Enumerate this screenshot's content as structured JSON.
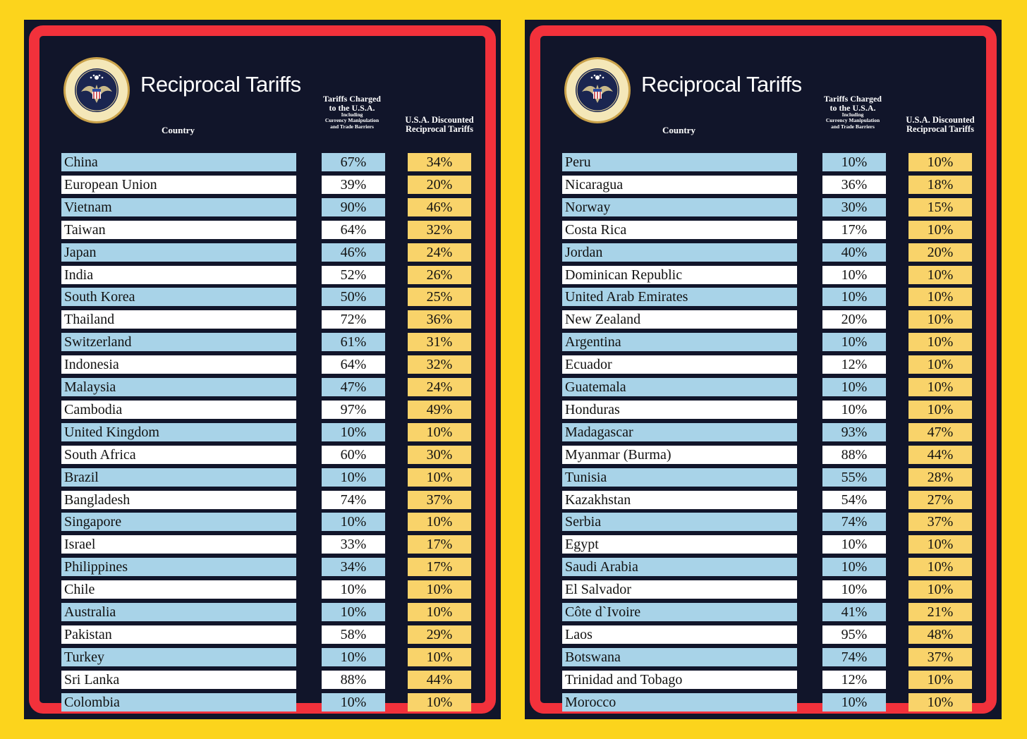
{
  "colors": {
    "background": "#fcd41c",
    "frame": "#f2313b",
    "panel": "#11152a",
    "row_blue": "#a8d3e8",
    "row_white": "#ffffff",
    "discount_cell": "#f9d36a"
  },
  "panels": [
    {
      "title": "Reciprocal Tariffs",
      "seal_icon": "presidential-seal-icon",
      "headers": {
        "country": "Country",
        "charged_line1": "Tariffs Charged",
        "charged_line2": "to the U.S.A.",
        "charged_sub1": "Including",
        "charged_sub2": "Currency Manipulation",
        "charged_sub3": "and Trade Barriers",
        "discount_line1": "U.S.A. Discounted",
        "discount_line2": "Reciprocal Tariffs"
      },
      "rows": [
        {
          "country": "China",
          "charged": "67%",
          "discounted": "34%"
        },
        {
          "country": "European Union",
          "charged": "39%",
          "discounted": "20%"
        },
        {
          "country": "Vietnam",
          "charged": "90%",
          "discounted": "46%"
        },
        {
          "country": "Taiwan",
          "charged": "64%",
          "discounted": "32%"
        },
        {
          "country": "Japan",
          "charged": "46%",
          "discounted": "24%"
        },
        {
          "country": "India",
          "charged": "52%",
          "discounted": "26%"
        },
        {
          "country": "South Korea",
          "charged": "50%",
          "discounted": "25%"
        },
        {
          "country": "Thailand",
          "charged": "72%",
          "discounted": "36%"
        },
        {
          "country": "Switzerland",
          "charged": "61%",
          "discounted": "31%"
        },
        {
          "country": "Indonesia",
          "charged": "64%",
          "discounted": "32%"
        },
        {
          "country": "Malaysia",
          "charged": "47%",
          "discounted": "24%"
        },
        {
          "country": "Cambodia",
          "charged": "97%",
          "discounted": "49%"
        },
        {
          "country": "United Kingdom",
          "charged": "10%",
          "discounted": "10%"
        },
        {
          "country": "South Africa",
          "charged": "60%",
          "discounted": "30%"
        },
        {
          "country": "Brazil",
          "charged": "10%",
          "discounted": "10%"
        },
        {
          "country": "Bangladesh",
          "charged": "74%",
          "discounted": "37%"
        },
        {
          "country": "Singapore",
          "charged": "10%",
          "discounted": "10%"
        },
        {
          "country": "Israel",
          "charged": "33%",
          "discounted": "17%"
        },
        {
          "country": "Philippines",
          "charged": "34%",
          "discounted": "17%"
        },
        {
          "country": "Chile",
          "charged": "10%",
          "discounted": "10%"
        },
        {
          "country": "Australia",
          "charged": "10%",
          "discounted": "10%"
        },
        {
          "country": "Pakistan",
          "charged": "58%",
          "discounted": "29%"
        },
        {
          "country": "Turkey",
          "charged": "10%",
          "discounted": "10%"
        },
        {
          "country": "Sri Lanka",
          "charged": "88%",
          "discounted": "44%"
        },
        {
          "country": "Colombia",
          "charged": "10%",
          "discounted": "10%"
        }
      ]
    },
    {
      "title": "Reciprocal Tariffs",
      "seal_icon": "presidential-seal-icon",
      "headers": {
        "country": "Country",
        "charged_line1": "Tariffs Charged",
        "charged_line2": "to the U.S.A.",
        "charged_sub1": "Including",
        "charged_sub2": "Currency Manipulation",
        "charged_sub3": "and Trade Barriers",
        "discount_line1": "U.S.A. Discounted",
        "discount_line2": "Reciprocal Tariffs"
      },
      "rows": [
        {
          "country": "Peru",
          "charged": "10%",
          "discounted": "10%"
        },
        {
          "country": "Nicaragua",
          "charged": "36%",
          "discounted": "18%"
        },
        {
          "country": "Norway",
          "charged": "30%",
          "discounted": "15%"
        },
        {
          "country": "Costa Rica",
          "charged": "17%",
          "discounted": "10%"
        },
        {
          "country": "Jordan",
          "charged": "40%",
          "discounted": "20%"
        },
        {
          "country": "Dominican Republic",
          "charged": "10%",
          "discounted": "10%"
        },
        {
          "country": "United Arab Emirates",
          "charged": "10%",
          "discounted": "10%"
        },
        {
          "country": "New Zealand",
          "charged": "20%",
          "discounted": "10%"
        },
        {
          "country": "Argentina",
          "charged": "10%",
          "discounted": "10%"
        },
        {
          "country": "Ecuador",
          "charged": "12%",
          "discounted": "10%"
        },
        {
          "country": "Guatemala",
          "charged": "10%",
          "discounted": "10%"
        },
        {
          "country": "Honduras",
          "charged": "10%",
          "discounted": "10%"
        },
        {
          "country": "Madagascar",
          "charged": "93%",
          "discounted": "47%"
        },
        {
          "country": "Myanmar (Burma)",
          "charged": "88%",
          "discounted": "44%"
        },
        {
          "country": "Tunisia",
          "charged": "55%",
          "discounted": "28%"
        },
        {
          "country": "Kazakhstan",
          "charged": "54%",
          "discounted": "27%"
        },
        {
          "country": "Serbia",
          "charged": "74%",
          "discounted": "37%"
        },
        {
          "country": "Egypt",
          "charged": "10%",
          "discounted": "10%"
        },
        {
          "country": "Saudi Arabia",
          "charged": "10%",
          "discounted": "10%"
        },
        {
          "country": "El Salvador",
          "charged": "10%",
          "discounted": "10%"
        },
        {
          "country": "Côte d`Ivoire",
          "charged": "41%",
          "discounted": "21%"
        },
        {
          "country": "Laos",
          "charged": "95%",
          "discounted": "48%"
        },
        {
          "country": "Botswana",
          "charged": "74%",
          "discounted": "37%"
        },
        {
          "country": "Trinidad and Tobago",
          "charged": "12%",
          "discounted": "10%"
        },
        {
          "country": "Morocco",
          "charged": "10%",
          "discounted": "10%"
        }
      ]
    }
  ]
}
